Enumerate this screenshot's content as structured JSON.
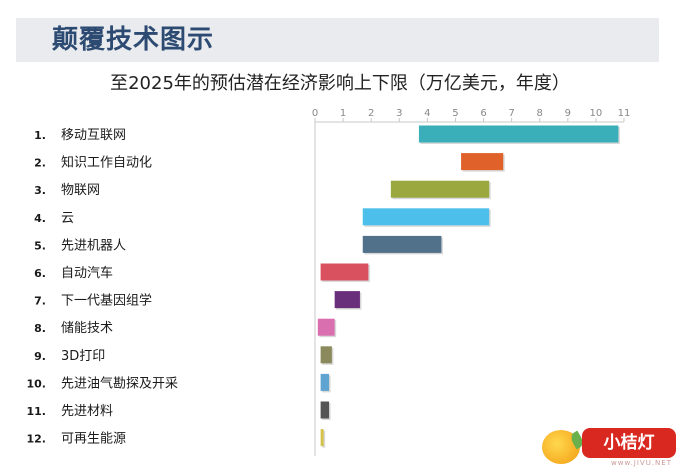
{
  "header": {
    "title": "颠覆技术图示"
  },
  "chart_data": {
    "type": "bar",
    "title": "至2025年的预估潜在经济影响上下限（万亿美元，年度）",
    "xlim": [
      0,
      11
    ],
    "ticks": [
      0,
      1,
      2,
      3,
      4,
      5,
      6,
      7,
      8,
      9,
      10,
      11
    ],
    "grid": false,
    "categories": [
      {
        "num": "1.",
        "label": "移动互联网"
      },
      {
        "num": "2.",
        "label": "知识工作自动化"
      },
      {
        "num": "3.",
        "label": "物联网"
      },
      {
        "num": "4.",
        "label": "云"
      },
      {
        "num": "5.",
        "label": "先进机器人"
      },
      {
        "num": "6.",
        "label": "自动汽车"
      },
      {
        "num": "7.",
        "label": "下一代基因组学"
      },
      {
        "num": "8.",
        "label": "储能技术"
      },
      {
        "num": "9.",
        "label": "3D打印"
      },
      {
        "num": "10.",
        "label": "先进油气勘探及开采"
      },
      {
        "num": "11.",
        "label": "先进材料"
      },
      {
        "num": "12.",
        "label": "可再生能源"
      }
    ],
    "series": [
      {
        "low": 3.7,
        "high": 10.8,
        "color": "#3aafb9"
      },
      {
        "low": 5.2,
        "high": 6.7,
        "color": "#e0622a"
      },
      {
        "low": 2.7,
        "high": 6.2,
        "color": "#9aa83e"
      },
      {
        "low": 1.7,
        "high": 6.2,
        "color": "#4cc0ea"
      },
      {
        "low": 1.7,
        "high": 4.5,
        "color": "#51708a"
      },
      {
        "low": 0.2,
        "high": 1.9,
        "color": "#d9505f"
      },
      {
        "low": 0.7,
        "high": 1.6,
        "color": "#6a2f7a"
      },
      {
        "low": 0.1,
        "high": 0.7,
        "color": "#d96fae"
      },
      {
        "low": 0.2,
        "high": 0.6,
        "color": "#8a8a5c"
      },
      {
        "low": 0.2,
        "high": 0.5,
        "color": "#5fa3d1"
      },
      {
        "low": 0.2,
        "high": 0.5,
        "color": "#555555"
      },
      {
        "low": 0.2,
        "high": 0.3,
        "color": "#d4c24a"
      }
    ]
  },
  "logo": {
    "text": "小桔灯",
    "url": "www.JIVU.NET"
  }
}
